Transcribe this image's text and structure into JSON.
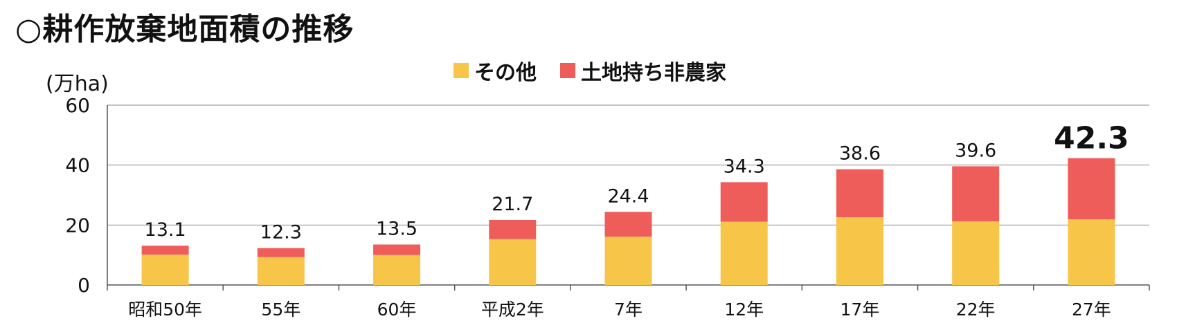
{
  "title": "○耕作放棄地面積の推移",
  "unit_label": "(万ha)",
  "legend": [
    {
      "label": "その他",
      "color": "#F7C548"
    },
    {
      "label": "土地持ち非農家",
      "color": "#EE5D5A"
    }
  ],
  "chart_data": {
    "type": "bar",
    "stacked": true,
    "categories": [
      "昭和50年",
      "55年",
      "60年",
      "平成2年",
      "7年",
      "12年",
      "17年",
      "22年",
      "27年"
    ],
    "series": [
      {
        "name": "その他",
        "color": "#F7C548",
        "values": [
          10.1,
          9.3,
          10.0,
          15.3,
          16.1,
          21.1,
          22.6,
          21.2,
          21.9
        ]
      },
      {
        "name": "土地持ち非農家",
        "color": "#EE5D5A",
        "values": [
          3.0,
          3.0,
          3.5,
          6.4,
          8.3,
          13.2,
          16.0,
          18.4,
          20.4
        ]
      }
    ],
    "totals": [
      "13.1",
      "12.3",
      "13.5",
      "21.7",
      "24.4",
      "34.3",
      "38.6",
      "39.6",
      "42.3"
    ],
    "ylim": [
      0,
      60
    ],
    "yticks": [
      0,
      20,
      40,
      60
    ],
    "grid": true,
    "legend_position": "top-center"
  }
}
